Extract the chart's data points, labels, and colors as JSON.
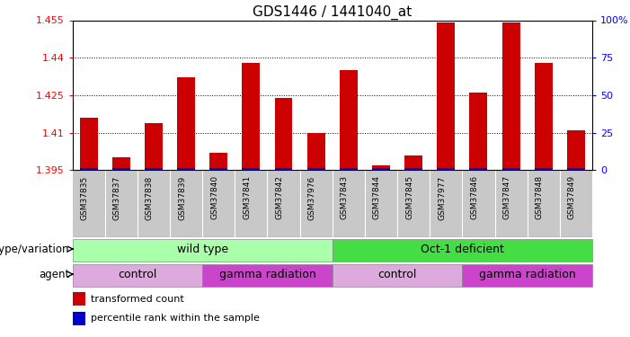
{
  "title": "GDS1446 / 1441040_at",
  "samples": [
    "GSM37835",
    "GSM37837",
    "GSM37838",
    "GSM37839",
    "GSM37840",
    "GSM37841",
    "GSM37842",
    "GSM37976",
    "GSM37843",
    "GSM37844",
    "GSM37845",
    "GSM37977",
    "GSM37846",
    "GSM37847",
    "GSM37848",
    "GSM37849"
  ],
  "transformed_count": [
    1.416,
    1.4,
    1.414,
    1.432,
    1.402,
    1.438,
    1.424,
    1.41,
    1.435,
    1.397,
    1.401,
    1.454,
    1.426,
    1.454,
    1.438,
    1.411
  ],
  "ylim_left": [
    1.395,
    1.455
  ],
  "ylim_right": [
    0,
    100
  ],
  "yticks_left": [
    1.395,
    1.41,
    1.425,
    1.44,
    1.455
  ],
  "yticks_right": [
    0,
    25,
    50,
    75,
    100
  ],
  "bar_color": "#cc0000",
  "percentile_color": "#0000cc",
  "sample_bg_color": "#c8c8c8",
  "genotype_groups": [
    {
      "label": "wild type",
      "start": 0,
      "end": 7,
      "color": "#aaffaa"
    },
    {
      "label": "Oct-1 deficient",
      "start": 8,
      "end": 15,
      "color": "#44dd44"
    }
  ],
  "agent_groups": [
    {
      "label": "control",
      "start": 0,
      "end": 3,
      "color": "#ddaadd"
    },
    {
      "label": "gamma radiation",
      "start": 4,
      "end": 7,
      "color": "#cc44cc"
    },
    {
      "label": "control",
      "start": 8,
      "end": 11,
      "color": "#ddaadd"
    },
    {
      "label": "gamma radiation",
      "start": 12,
      "end": 15,
      "color": "#cc44cc"
    }
  ],
  "legend_items": [
    {
      "label": "transformed count",
      "color": "#cc0000"
    },
    {
      "label": "percentile rank within the sample",
      "color": "#0000cc"
    }
  ],
  "genotype_label": "genotype/variation",
  "agent_label": "agent",
  "title_fontsize": 11,
  "tick_fontsize": 8,
  "label_fontsize": 8.5,
  "bar_fontsize": 6.5,
  "legend_fontsize": 8
}
